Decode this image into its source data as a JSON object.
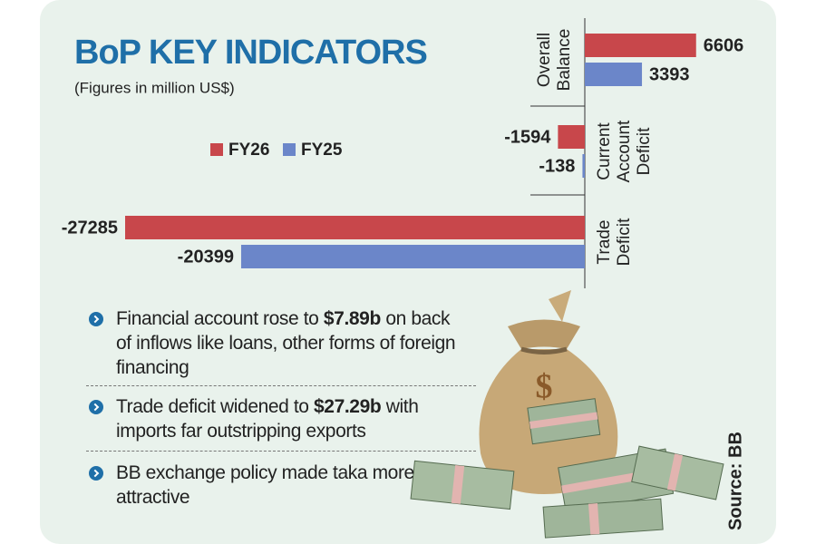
{
  "chart_data": {
    "type": "hbar",
    "title": "BoP KEY INDICATORS",
    "subtitle": "(Figures in million US$)",
    "categories": [
      "Overall Balance",
      "Current Account Deficit",
      "Trade Deficit"
    ],
    "series": [
      {
        "name": "FY26",
        "color": "#c8474b",
        "values": [
          6606,
          -1594,
          -27285
        ]
      },
      {
        "name": "FY25",
        "color": "#6b86c9",
        "values": [
          3393,
          -138,
          -20399
        ]
      }
    ],
    "source": "Source: BB"
  },
  "notes": [
    [
      {
        "text": "Financial account rose to "
      },
      {
        "text": "$7.89b",
        "strong": true
      },
      {
        "text": " on back of inflows like loans, other forms of foreign financing"
      }
    ],
    [
      {
        "text": "Trade deficit widened to "
      },
      {
        "text": "$27.29b",
        "strong": true
      },
      {
        "text": " with imports far outstripping exports"
      }
    ],
    [
      {
        "text": "BB exchange policy made taka more attractive"
      }
    ]
  ]
}
